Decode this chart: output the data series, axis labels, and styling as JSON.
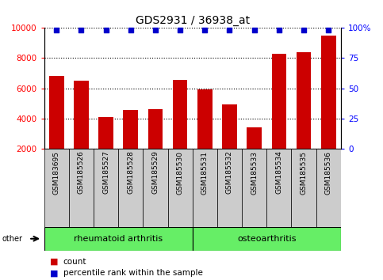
{
  "title": "GDS2931 / 36938_at",
  "samples": [
    "GSM183695",
    "GSM185526",
    "GSM185527",
    "GSM185528",
    "GSM185529",
    "GSM185530",
    "GSM185531",
    "GSM185532",
    "GSM185533",
    "GSM185534",
    "GSM185535",
    "GSM185536"
  ],
  "counts": [
    6800,
    6500,
    4100,
    4550,
    4600,
    6550,
    5900,
    4900,
    3400,
    8300,
    8400,
    9500
  ],
  "percentiles": [
    98,
    98,
    98,
    98,
    98,
    98,
    98,
    98,
    98,
    98,
    98,
    98
  ],
  "group_names": [
    "rheumatoid arthritis",
    "osteoarthritis"
  ],
  "ra_count": 6,
  "oa_count": 6,
  "bar_color": "#CC0000",
  "dot_color": "#0000CC",
  "ylim_left": [
    2000,
    10000
  ],
  "ylim_right": [
    0,
    100
  ],
  "yticks_left": [
    2000,
    4000,
    6000,
    8000,
    10000
  ],
  "yticks_right": [
    0,
    25,
    50,
    75,
    100
  ],
  "background_color": "#ffffff",
  "label_box_color": "#cccccc",
  "green_color": "#66EE66",
  "legend_count_label": "count",
  "legend_percentile_label": "percentile rank within the sample"
}
